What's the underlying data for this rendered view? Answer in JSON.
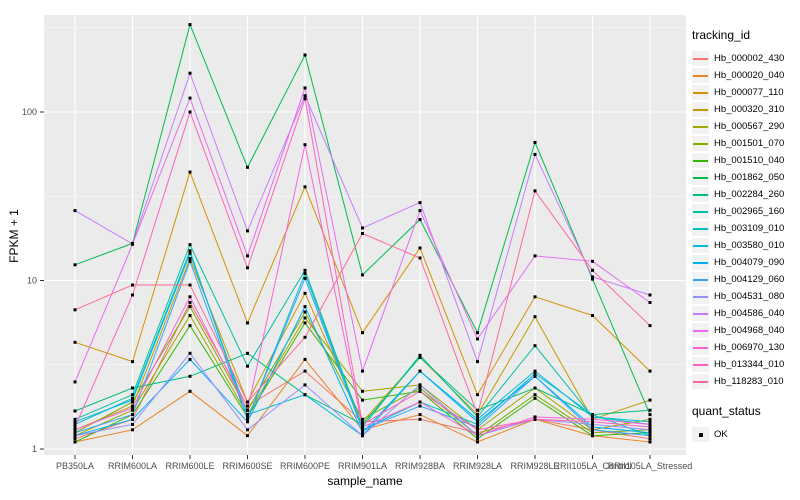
{
  "chart_data": {
    "type": "line",
    "title": "",
    "xlabel": "sample_name",
    "ylabel": "FPKM + 1",
    "y_scale": "log10",
    "y_ticks": [
      "1",
      "10",
      "100"
    ],
    "y_tick_values": [
      1,
      10,
      100
    ],
    "ylim": [
      1,
      380
    ],
    "grid": "on",
    "panel_bg": "#EBEBEB",
    "grid_color": "#FFFFFF",
    "point_color": "#000000",
    "legend_position": "right",
    "legend_title": "tracking_id",
    "x_categories": [
      "PB350LA",
      "RRIM600LA",
      "RRIM600LE",
      "RRIM600SE",
      "RRIM600PE",
      "RRIM901LA",
      "RRIM928BA",
      "RRIM928LA",
      "RRIM928LE",
      "RRII105LA_Control",
      "RRII105LA_Stressed"
    ],
    "series": [
      {
        "name": "Hb_000002_430",
        "color": "#F8766D",
        "values": [
          1.15,
          1.5,
          7.4,
          1.8,
          2.9,
          1.45,
          1.5,
          1.25,
          1.5,
          1.3,
          1.15
        ]
      },
      {
        "name": "Hb_000020_040",
        "color": "#E88526",
        "values": [
          1.1,
          1.3,
          2.2,
          1.2,
          3.4,
          1.3,
          1.6,
          1.1,
          1.5,
          1.2,
          1.1
        ]
      },
      {
        "name": "Hb_000077_110",
        "color": "#D39200",
        "values": [
          4.3,
          3.3,
          44,
          5.6,
          36,
          4.9,
          15.6,
          2.1,
          8.0,
          6.2,
          2.9
        ]
      },
      {
        "name": "Hb_000320_310",
        "color": "#C09B00",
        "values": [
          1.3,
          1.8,
          13.5,
          1.9,
          8.4,
          1.45,
          3.5,
          1.6,
          6.1,
          1.5,
          1.95
        ]
      },
      {
        "name": "Hb_000567_290",
        "color": "#A3A500",
        "values": [
          1.2,
          1.7,
          6.2,
          1.6,
          6.0,
          2.2,
          2.4,
          1.3,
          2.3,
          1.3,
          1.5
        ]
      },
      {
        "name": "Hb_001501_070",
        "color": "#7CAE00",
        "values": [
          1.25,
          1.9,
          7.0,
          1.7,
          6.5,
          1.5,
          2.3,
          1.2,
          2.1,
          1.25,
          1.3
        ]
      },
      {
        "name": "Hb_001510_040",
        "color": "#39B600",
        "values": [
          1.1,
          1.6,
          5.4,
          1.55,
          5.6,
          1.95,
          2.2,
          1.15,
          2.0,
          1.2,
          1.25
        ]
      },
      {
        "name": "Hb_001862_050",
        "color": "#00BB4E",
        "values": [
          12.4,
          16.6,
          330,
          47,
          218,
          10.8,
          23,
          4.9,
          66,
          10.2,
          1.6
        ]
      },
      {
        "name": "Hb_002284_260",
        "color": "#00BF7D",
        "values": [
          1.68,
          2.3,
          2.7,
          3.7,
          2.1,
          1.4,
          3.5,
          1.7,
          2.3,
          1.6,
          1.7
        ]
      },
      {
        "name": "Hb_002965_160",
        "color": "#00C1A3",
        "values": [
          1.5,
          2.1,
          16.3,
          3.1,
          11.5,
          1.35,
          3.6,
          1.55,
          4.1,
          1.55,
          1.4
        ]
      },
      {
        "name": "Hb_003109_010",
        "color": "#00BFC4",
        "values": [
          1.4,
          2.0,
          15.0,
          1.5,
          11.0,
          1.3,
          1.9,
          1.4,
          2.8,
          1.6,
          1.2
        ]
      },
      {
        "name": "Hb_003580_010",
        "color": "#00BAE0",
        "values": [
          1.45,
          1.95,
          14.5,
          1.6,
          2.1,
          1.2,
          2.9,
          1.5,
          2.9,
          1.55,
          1.45
        ]
      },
      {
        "name": "Hb_004079_090",
        "color": "#00B0F6",
        "values": [
          1.2,
          1.5,
          3.4,
          1.45,
          7.0,
          1.25,
          2.9,
          1.45,
          2.7,
          1.35,
          1.25
        ]
      },
      {
        "name": "Hb_004129_060",
        "color": "#35A2FF",
        "values": [
          1.25,
          1.6,
          13.0,
          1.5,
          10.3,
          1.3,
          1.8,
          1.35,
          2.7,
          1.3,
          1.2
        ]
      },
      {
        "name": "Hb_004531_080",
        "color": "#9590FF",
        "values": [
          1.2,
          1.4,
          3.7,
          1.3,
          2.4,
          1.2,
          2.4,
          1.2,
          1.5,
          1.4,
          1.3
        ]
      },
      {
        "name": "Hb_004586_040",
        "color": "#C77CFF",
        "values": [
          26,
          16.5,
          170,
          19.7,
          125,
          20.5,
          29,
          3.3,
          56,
          10.5,
          8.2
        ]
      },
      {
        "name": "Hb_004968_040",
        "color": "#E76BF3",
        "values": [
          2.5,
          16.4,
          121,
          14,
          139,
          2.9,
          26,
          4.5,
          14,
          13,
          7.4
        ]
      },
      {
        "name": "Hb_006970_130",
        "color": "#FA62DB",
        "values": [
          1.3,
          1.75,
          8.0,
          1.7,
          64,
          1.35,
          1.9,
          1.2,
          1.55,
          1.5,
          1.4
        ]
      },
      {
        "name": "Hb_013344_010",
        "color": "#FF62BC",
        "values": [
          1.35,
          8.2,
          100,
          11.9,
          120,
          1.4,
          2.2,
          1.3,
          1.5,
          1.45,
          1.35
        ]
      },
      {
        "name": "Hb_118283_010",
        "color": "#FF6A98",
        "values": [
          6.7,
          9.4,
          9.4,
          1.9,
          4.6,
          19,
          13.6,
          1.6,
          34,
          11.5,
          5.4
        ]
      }
    ],
    "quant_legend": {
      "title": "quant_status",
      "items": [
        "OK"
      ],
      "marker": "square",
      "marker_color": "#000000"
    }
  }
}
